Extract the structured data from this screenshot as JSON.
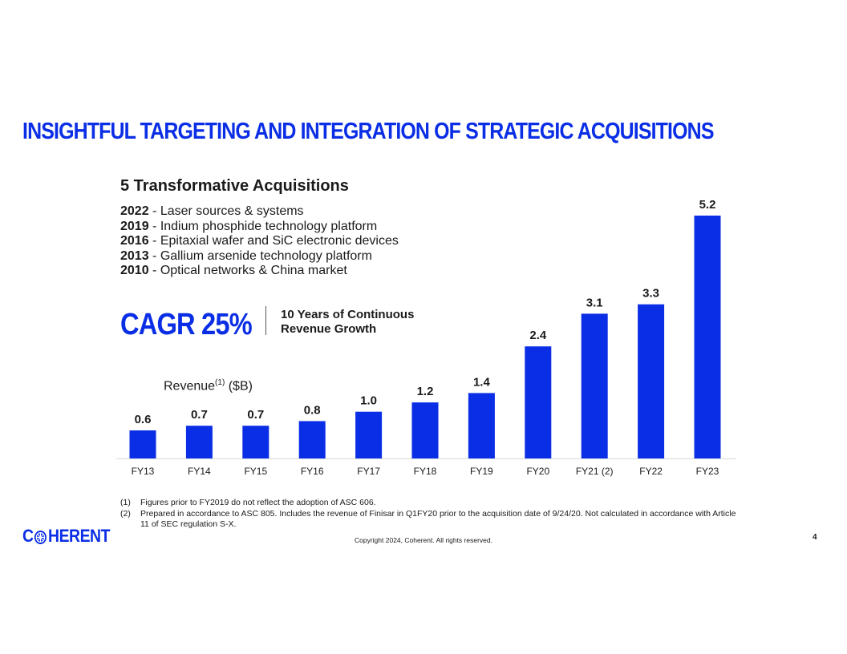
{
  "title": "INSIGHTFUL TARGETING AND INTEGRATION OF STRATEGIC ACQUISITIONS",
  "subtitle": "5 Transformative Acquisitions",
  "acquisitions": [
    {
      "year": "2022",
      "text": " - Laser sources & systems"
    },
    {
      "year": "2019",
      "text": " - Indium phosphide technology platform"
    },
    {
      "year": "2016",
      "text": " - Epitaxial wafer and SiC electronic devices"
    },
    {
      "year": "2013",
      "text": " - Gallium arsenide technology platform"
    },
    {
      "year": "2010",
      "text": " - Optical networks & China market"
    }
  ],
  "cagr": {
    "value": "CAGR 25%",
    "note_line1": "10 Years of Continuous",
    "note_line2": "Revenue Growth"
  },
  "revenue_label": {
    "text": "Revenue",
    "sup": "(1)",
    "unit": " ($B)"
  },
  "chart_data": {
    "type": "bar",
    "categories": [
      "FY13",
      "FY14",
      "FY15",
      "FY16",
      "FY17",
      "FY18",
      "FY19",
      "FY20",
      "FY21 (2)",
      "FY22",
      "FY23"
    ],
    "values": [
      0.6,
      0.7,
      0.7,
      0.8,
      1.0,
      1.2,
      1.4,
      2.4,
      3.1,
      3.3,
      5.2
    ],
    "value_labels": [
      "0.6",
      "0.7",
      "0.7",
      "0.8",
      "1.0",
      "1.2",
      "1.4",
      "2.4",
      "3.1",
      "3.3",
      "5.2"
    ],
    "ylim": [
      0,
      5.2
    ],
    "bar_color": "#0a2ee6",
    "grid": false
  },
  "footnotes": [
    {
      "num": "(1)",
      "text": "Figures prior to FY2019 do not reflect the adoption of ASC 606."
    },
    {
      "num": "(2)",
      "text": "Prepared in accordance to ASC 805. Includes the revenue of Finisar in Q1FY20 prior to the acquisition date of 9/24/20. Not calculated in accordance with Article 11 of SEC regulation S-X."
    }
  ],
  "logo": {
    "prefix": "C",
    "suffix": "HERENT",
    "icon": "coherent-logo-icon"
  },
  "copyright": "Copyright 2024, Coherent. All rights reserved.",
  "page_number": "4",
  "colors": {
    "accent": "#0a2ee6",
    "text": "#1a1a1a"
  }
}
